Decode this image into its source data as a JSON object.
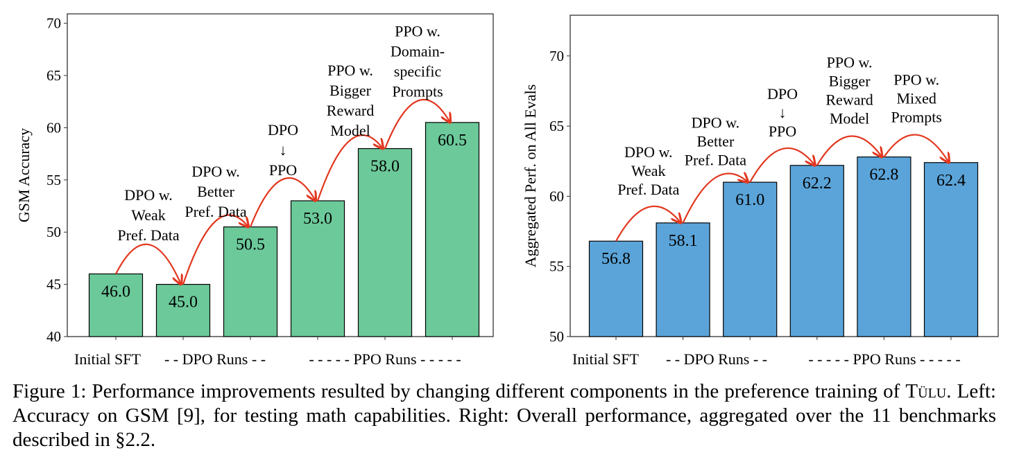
{
  "colors": {
    "left_bar": "#6cc99a",
    "right_bar": "#5ba4d9",
    "arrow": "#e2371f"
  },
  "chart_data": [
    {
      "type": "bar",
      "ylabel": "GSM Accuracy",
      "ylim": [
        40,
        70.9
      ],
      "yticks": [
        "40",
        "45",
        "50",
        "55",
        "60",
        "65",
        "70"
      ],
      "values": [
        46.0,
        45.0,
        50.5,
        53.0,
        58.0,
        60.5
      ],
      "value_labels": [
        "46.0",
        "45.0",
        "50.5",
        "53.0",
        "58.0",
        "60.5"
      ],
      "groups": [
        "Initial SFT",
        "- - DPO Runs - -",
        "- - - - - PPO Runs - - - - -"
      ],
      "annotations": [
        [
          "DPO w.",
          "Weak",
          "Pref. Data"
        ],
        [
          "DPO w.",
          "Better",
          "Pref. Data"
        ],
        [
          "DPO",
          "↓",
          "PPO"
        ],
        [
          "PPO w.",
          "Bigger",
          "Reward",
          "Model"
        ],
        [
          "PPO w.",
          "Domain-",
          "specific",
          "Prompts"
        ]
      ]
    },
    {
      "type": "bar",
      "ylabel": "Aggregated Perf. on All Evals",
      "ylim": [
        50,
        72.9
      ],
      "yticks": [
        "50",
        "55",
        "60",
        "65",
        "70"
      ],
      "values": [
        56.8,
        58.1,
        61.0,
        62.2,
        62.8,
        62.4
      ],
      "value_labels": [
        "56.8",
        "58.1",
        "61.0",
        "62.2",
        "62.8",
        "62.4"
      ],
      "groups": [
        "Initial SFT",
        "- - DPO Runs - -",
        "- - - - - PPO Runs - - - - -"
      ],
      "annotations": [
        [
          "DPO w.",
          "Weak",
          "Pref. Data"
        ],
        [
          "DPO w.",
          "Better",
          "Pref. Data"
        ],
        [
          "DPO",
          "↓",
          "PPO"
        ],
        [
          "PPO w.",
          "Bigger",
          "Reward",
          "Model"
        ],
        [
          "PPO w.",
          "Mixed",
          "Prompts"
        ]
      ]
    }
  ],
  "caption": {
    "prefix": "Figure 1: Performance improvements resulted by changing different components in the preference training of ",
    "tulu": "Tülu",
    "rest": ". Left: Accuracy on GSM [9], for testing math capabilities. Right: Overall performance, aggregated over the 11 benchmarks described in §2.2."
  }
}
